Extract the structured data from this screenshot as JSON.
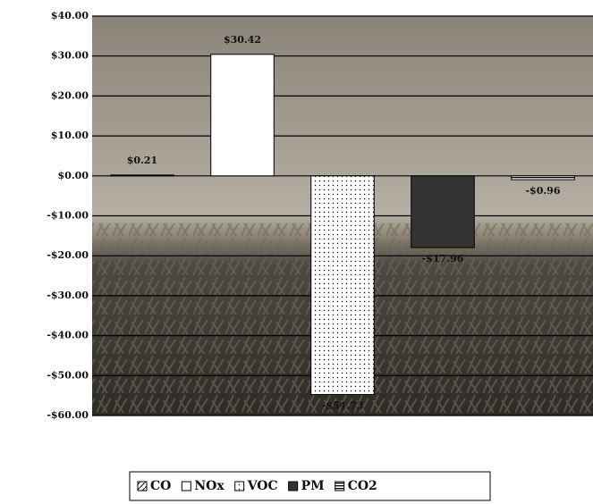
{
  "chart_data": {
    "type": "bar",
    "categories": [
      null
    ],
    "series": [
      {
        "name": "CO",
        "color": "#ffffff",
        "pattern": "diagonal",
        "values": [
          0.21
        ],
        "value_labels": [
          "$0.21"
        ]
      },
      {
        "name": "NOx",
        "color": "#ffffff",
        "pattern": "none",
        "values": [
          30.42
        ],
        "value_labels": [
          "$30.42"
        ]
      },
      {
        "name": "VOC",
        "color": "#ffffff",
        "pattern": "dots",
        "values": [
          -54.73
        ],
        "value_labels": [
          "-$54.73"
        ]
      },
      {
        "name": "PM",
        "color": "#333333",
        "pattern": "none",
        "values": [
          -17.96
        ],
        "value_labels": [
          "-$17.96"
        ]
      },
      {
        "name": "CO2",
        "color": "#222222",
        "pattern": "horizontal",
        "values": [
          -0.96
        ],
        "value_labels": [
          "-$0.96"
        ]
      }
    ],
    "ylim": [
      -60,
      40
    ],
    "yticks": [
      {
        "value": -60,
        "label": "-$60.00"
      },
      {
        "value": -50,
        "label": "-$50.00"
      },
      {
        "value": -40,
        "label": "-$40.00"
      },
      {
        "value": -30,
        "label": "-$30.00"
      },
      {
        "value": -20,
        "label": "-$20.00"
      },
      {
        "value": -10,
        "label": "-$10.00"
      },
      {
        "value": 0,
        "label": "$0.00"
      },
      {
        "value": 10,
        "label": "$10.00"
      },
      {
        "value": 20,
        "label": "$20.00"
      },
      {
        "value": 30,
        "label": "$30.00"
      },
      {
        "value": 40,
        "label": "$40.00"
      }
    ],
    "grid": true,
    "legend": "bottom"
  }
}
